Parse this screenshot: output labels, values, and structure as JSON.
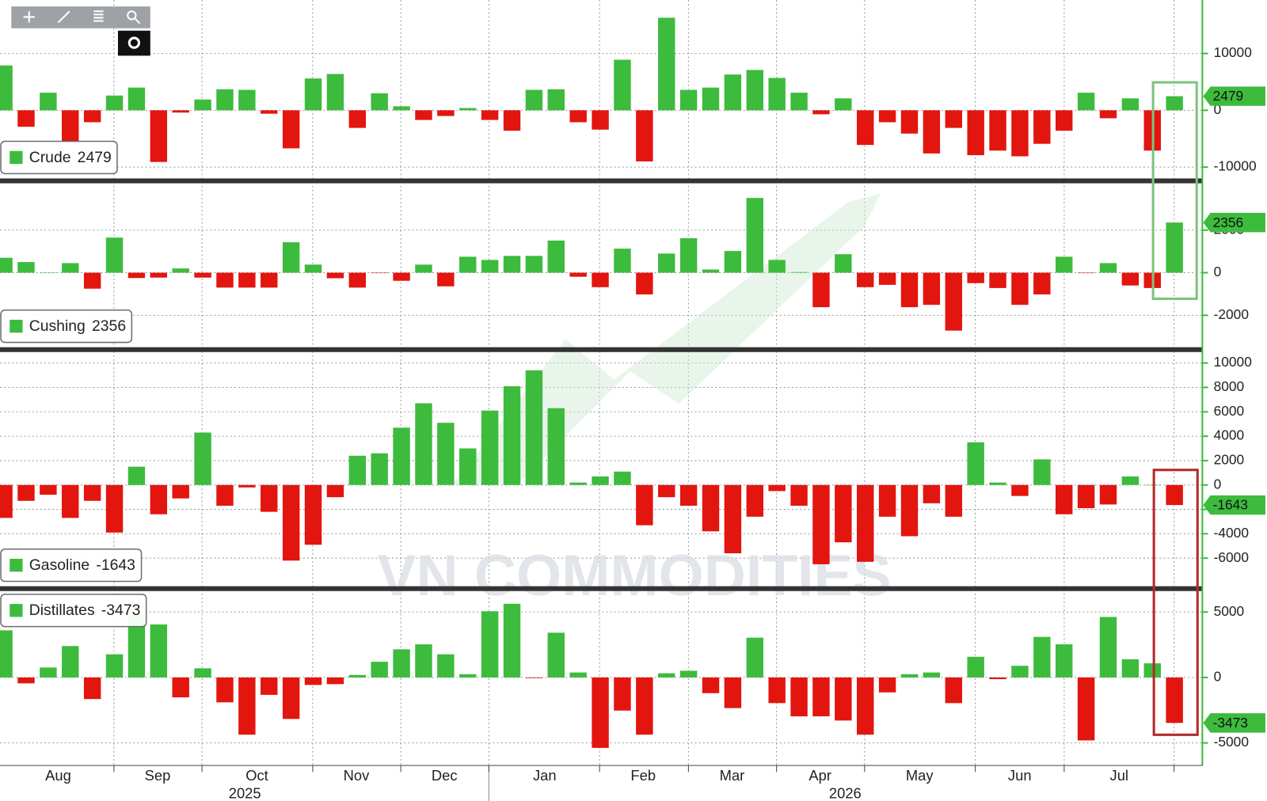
{
  "watermark": "VN COMMODITIES",
  "x_axis": {
    "months": [
      "Aug",
      "Sep",
      "Oct",
      "Nov",
      "Dec",
      "Jan",
      "Feb",
      "Mar",
      "Apr",
      "May",
      "Jun",
      "Jul"
    ],
    "years": [
      "2025",
      "2026"
    ]
  },
  "chart_data": [
    {
      "type": "bar",
      "name": "Crude",
      "legend": "lower left",
      "grid": true,
      "colors": {
        "positive": "#3dbb3d",
        "negative": "#e3150f"
      },
      "ylim": [
        -12000,
        18000
      ],
      "yticks": [
        -10000,
        0,
        10000
      ],
      "values": [
        7900,
        -2900,
        3100,
        -5700,
        -2100,
        2600,
        4000,
        -9100,
        -400,
        1900,
        3700,
        3600,
        -600,
        -6700,
        5600,
        6400,
        -3100,
        3000,
        700,
        -1700,
        -1000,
        400,
        -1700,
        -3600,
        3600,
        3700,
        -2100,
        -3400,
        8900,
        -9000,
        16300,
        3600,
        4000,
        6300,
        7100,
        5700,
        3100,
        -700,
        2100,
        -6100,
        -2100,
        -4100,
        -7600,
        -3100,
        -7900,
        -7100,
        -8100,
        -5900,
        -3600,
        3100,
        -1400,
        2100,
        -7100,
        2479
      ]
    },
    {
      "type": "bar",
      "name": "Cushing",
      "legend": "lower left",
      "grid": true,
      "colors": {
        "positive": "#3dbb3d",
        "negative": "#e3150f"
      },
      "ylim": [
        -3500,
        4200
      ],
      "yticks": [
        -2000,
        0,
        2000
      ],
      "values": [
        700,
        500,
        0,
        450,
        -750,
        1650,
        -250,
        -230,
        200,
        -230,
        -700,
        -700,
        -700,
        1430,
        380,
        -260,
        -700,
        -20,
        -380,
        380,
        -640,
        750,
        600,
        790,
        790,
        1510,
        -190,
        -680,
        1130,
        -1020,
        900,
        1620,
        150,
        1020,
        3510,
        600,
        30,
        -1620,
        870,
        -680,
        -570,
        -1620,
        -1510,
        -2720,
        -490,
        -720,
        -1510,
        -1020,
        750,
        -20,
        450,
        -600,
        -720,
        2356
      ]
    },
    {
      "type": "bar",
      "name": "Gasoline",
      "legend": "lower left",
      "grid": true,
      "colors": {
        "positive": "#3dbb3d",
        "negative": "#e3150f"
      },
      "ylim": [
        -8300,
        10900
      ],
      "yticks": [
        -6000,
        -4000,
        -2000,
        0,
        2000,
        4000,
        6000,
        8000,
        10000
      ],
      "values": [
        -2700,
        -1300,
        -800,
        -2700,
        -1300,
        -3900,
        1500,
        -2400,
        -1100,
        4300,
        -1700,
        -200,
        -2200,
        -6200,
        -4900,
        -1000,
        2400,
        2600,
        4700,
        6700,
        5100,
        3000,
        6100,
        8100,
        9400,
        6300,
        200,
        700,
        1100,
        -3300,
        -1000,
        -1700,
        -3800,
        -5600,
        -2600,
        -500,
        -1700,
        -6500,
        -4700,
        -6300,
        -2600,
        -4200,
        -1500,
        -2600,
        3500,
        200,
        -900,
        2100,
        -2400,
        -1900,
        -1600,
        700,
        0,
        -1643
      ]
    },
    {
      "type": "bar",
      "name": "Distillates",
      "legend": "upper left",
      "grid": true,
      "colors": {
        "positive": "#3dbb3d",
        "negative": "#e3150f"
      },
      "ylim": [
        -6600,
        6600
      ],
      "yticks": [
        -5000,
        0,
        5000
      ],
      "values": [
        3600,
        -450,
        760,
        2400,
        -1650,
        1770,
        4750,
        4050,
        -1520,
        700,
        -1900,
        -4370,
        -1330,
        -3170,
        -570,
        -510,
        190,
        1200,
        2150,
        2530,
        1770,
        250,
        5060,
        5630,
        -50,
        3420,
        380,
        -5380,
        -2530,
        -4370,
        320,
        510,
        -1200,
        -2340,
        3040,
        -1960,
        -2970,
        -2970,
        -3290,
        -4370,
        -1140,
        250,
        380,
        -1960,
        1580,
        -130,
        890,
        3100,
        2530,
        -4810,
        4620,
        1390,
        1080,
        -3473
      ]
    }
  ]
}
